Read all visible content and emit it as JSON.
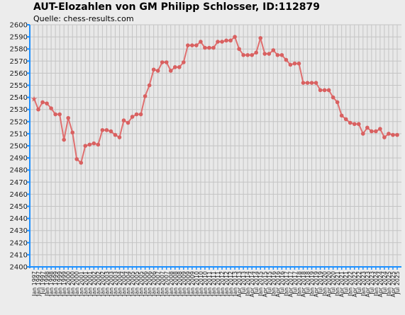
{
  "chart_data": {
    "type": "line",
    "title": "AUT-Elozahlen von GM Philipp Schlosser, ID:112879",
    "subtitle": "Quelle: chess-results.com",
    "ylim": [
      2400,
      2600
    ],
    "ytick_step": 10,
    "grid": true,
    "line_color": "#e07070",
    "marker_color": "#d86060",
    "axis_color": "#1e90ff",
    "background": "#ececec",
    "grid_color": "#c4c4c4",
    "x": [
      "Jan 1997",
      "Jan 1997",
      "Jul 1997",
      "Jan 1998",
      "Jan 1998",
      "Jan 1999",
      "Jan 1999",
      "Jan 1999",
      "Jan 2000",
      "Jan 2000",
      "Jan 2000",
      "Jan 2001",
      "Jan 2001",
      "Jan 2001",
      "Jan 2002",
      "Jan 2002",
      "Jan 2002",
      "Jan 2003",
      "Jan 2003",
      "Jan 2003",
      "Jan 2004",
      "Jan 2004",
      "Jan 2004",
      "Jan 2005",
      "Jan 2005",
      "Jan 2005",
      "Jan 2006",
      "Jan 2006",
      "Jan 2006",
      "Jan 2007",
      "Jan 2007",
      "Jan 2007",
      "Jan 2008",
      "Jan 2008",
      "Jan 2008",
      "Jan 2009",
      "Jan 2009",
      "Jan 2009",
      "Jan 2010",
      "Jan 2010",
      "Jan 2010",
      "Jan 2011",
      "Jan 2011",
      "Jan 2011",
      "Jan 2012",
      "Jan 2012",
      "Jan 2012",
      "Jan 2013",
      "Apr 2013",
      "Jul 2013",
      "Jan 2014",
      "Apr 2014",
      "Jul 2014",
      "Jan 2015",
      "Apr 2015",
      "Jul 2015",
      "Jan 2016",
      "Apr 2016",
      "Jul 2016",
      "Jan 2017",
      "Apr 2017",
      "Jul 2017",
      "Jan 2018",
      "Apr 2018",
      "Jul 2018",
      "Jan 2019",
      "Apr 2019",
      "Jul 2019",
      "Jan 2020",
      "Apr 2020",
      "Jul 2020",
      "Jan 2021",
      "Apr 2021",
      "Jul 2021",
      "Jan 2022",
      "Apr 2022",
      "Jul 2022",
      "Jan 2023",
      "Apr 2023",
      "Jul 2023",
      "Jan 2024",
      "Apr 2024",
      "Jul 2024",
      "Jan 2025",
      "Apr 2025",
      "Jul 2025"
    ],
    "values": [
      2539,
      2530,
      2536,
      2535,
      2531,
      2526,
      2526,
      2505,
      2523,
      2511,
      2489,
      2486,
      2500,
      2501,
      2502,
      2501,
      2513,
      2513,
      2512,
      2509,
      2507,
      2521,
      2519,
      2524,
      2526,
      2526,
      2541,
      2550,
      2563,
      2562,
      2569,
      2569,
      2562,
      2565,
      2565,
      2569,
      2583,
      2583,
      2583,
      2586,
      2581,
      2581,
      2581,
      2586,
      2586,
      2587,
      2587,
      2590,
      2580,
      2575,
      2575,
      2575,
      2577,
      2589,
      2576,
      2576,
      2579,
      2575,
      2575,
      2571,
      2567,
      2568,
      2568,
      2552,
      2552,
      2552,
      2552,
      2546,
      2546,
      2546,
      2540,
      2536,
      2525,
      2522,
      2519,
      2518,
      2518,
      2510,
      2515,
      2512,
      2512,
      2514,
      2507,
      2510,
      2509,
      2509
    ]
  }
}
